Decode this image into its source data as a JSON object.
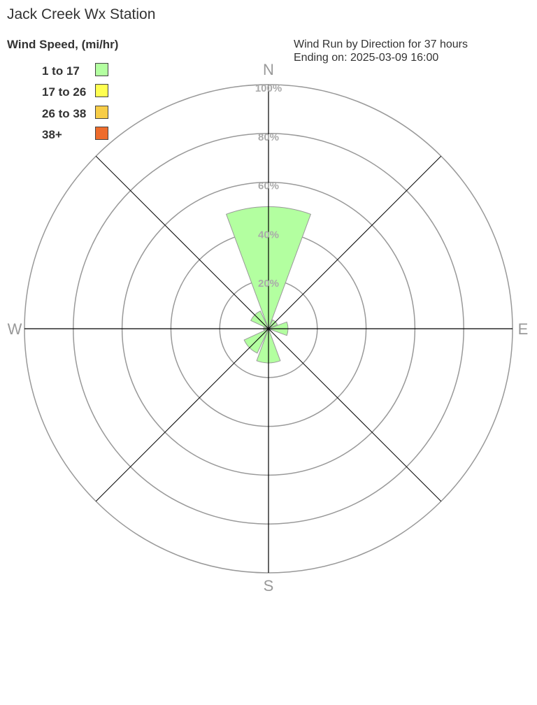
{
  "chart_data": {
    "type": "wind-rose",
    "title": "Jack Creek Wx Station",
    "subtitle_line1": "Wind Run by Direction for 37 hours",
    "subtitle_line2": "Ending on: 2025-03-09 16:00",
    "legend_title": "Wind Speed, (mi/hr)",
    "legend_placement": "top-left",
    "legend": [
      {
        "label": "1 to 17",
        "color": "#b3ffa0"
      },
      {
        "label": "17 to 26",
        "color": "#ffff50"
      },
      {
        "label": "26 to 38",
        "color": "#f7cd47"
      },
      {
        "label": "38+",
        "color": "#ee6c2c"
      }
    ],
    "compass_labels": [
      "N",
      "E",
      "S",
      "W"
    ],
    "radial_ticks": [
      "20%",
      "40%",
      "60%",
      "80%",
      "100%"
    ],
    "radial_range": [
      0,
      100
    ],
    "directions": [
      "N",
      "NE",
      "E",
      "SE",
      "S",
      "SW",
      "W",
      "NW"
    ],
    "series": [
      {
        "name": "1 to 17",
        "values": [
          50,
          4,
          8,
          1,
          14,
          11,
          2,
          8
        ]
      }
    ]
  }
}
